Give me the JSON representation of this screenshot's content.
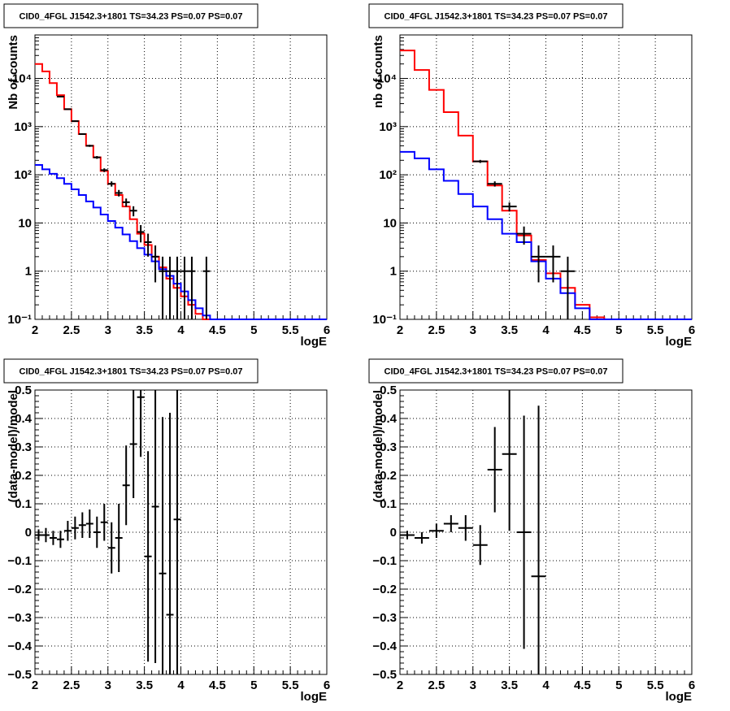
{
  "chart_data": [
    {
      "type": "histogram-log",
      "title": "CID0_4FGL J1542.3+1801 TS=34.23 PS=0.07 PS=0.07",
      "xlabel": "logE",
      "ylabel": "Nb of counts",
      "xlim": [
        2,
        6
      ],
      "ylim": [
        0.1,
        80000
      ],
      "log_y": true,
      "grid": true,
      "x_ticks": [
        "2",
        "2.5",
        "3",
        "3.5",
        "4",
        "4.5",
        "5",
        "5.5",
        "6"
      ],
      "x_tick_values": [
        2,
        2.5,
        3,
        3.5,
        4,
        4.5,
        5,
        5.5,
        6
      ],
      "y_ticks": [
        "10⁻¹",
        "1",
        "10",
        "10²",
        "10³",
        "10⁴"
      ],
      "y_tick_values": [
        0.1,
        1,
        10,
        100,
        1000,
        10000
      ],
      "bin_edges": [
        2.0,
        2.1,
        2.2,
        2.3,
        2.4,
        2.5,
        2.6,
        2.7,
        2.8,
        2.9,
        3.0,
        3.1,
        3.2,
        3.3,
        3.4,
        3.5,
        3.6,
        3.7,
        3.8,
        3.9,
        4.0,
        4.1,
        4.2,
        4.3,
        4.4,
        4.5,
        4.6,
        4.7,
        4.8,
        4.9,
        5.0,
        5.1,
        5.2,
        5.3,
        5.4,
        5.5,
        5.6,
        5.7,
        5.8,
        5.9,
        6.0
      ],
      "series": [
        {
          "name": "",
          "color": "#ff0000",
          "kind": "step",
          "values": [
            20000,
            14000,
            8000,
            4500,
            2300,
            1300,
            700,
            400,
            230,
            120,
            65,
            38,
            22,
            12,
            6,
            3.5,
            2,
            1.2,
            0.7,
            0.45,
            0.3,
            0.2,
            0.13,
            0.1,
            0.1,
            0.1,
            0.1,
            0.1,
            0.1,
            0.1,
            0.1,
            0.1,
            0.1,
            0.1,
            0.1,
            0.1,
            0.1,
            0.1,
            0.1,
            0.1
          ]
        },
        {
          "name": "",
          "color": "#0000ff",
          "kind": "step",
          "values": [
            160,
            130,
            105,
            85,
            65,
            50,
            38,
            28,
            21,
            15,
            11,
            8,
            5.8,
            4.2,
            3,
            2.2,
            1.6,
            1.1,
            0.8,
            0.55,
            0.38,
            0.25,
            0.17,
            0.12,
            0.1,
            0.1,
            0.1,
            0.1,
            0.1,
            0.1,
            0.1,
            0.1,
            0.1,
            0.1,
            0.1,
            0.1,
            0.1,
            0.1,
            0.1,
            0.1
          ]
        },
        {
          "name": "",
          "color": "#000000",
          "kind": "points",
          "x": [
            2.35,
            2.45,
            2.55,
            2.65,
            2.75,
            2.85,
            2.95,
            3.05,
            3.15,
            3.25,
            3.35,
            3.45,
            3.55,
            3.65,
            3.75,
            3.85,
            3.95,
            4.05,
            4.15,
            4.35
          ],
          "y": [
            4200,
            2300,
            1300,
            700,
            400,
            230,
            125,
            65,
            42,
            27,
            18,
            6.5,
            4,
            2,
            1,
            1,
            1,
            1,
            1,
            1
          ]
        }
      ]
    },
    {
      "type": "histogram-log",
      "title": "CID0_4FGL J1542.3+1801 TS=34.23 PS=0.07 PS=0.07",
      "xlabel": "logE",
      "ylabel": "nb of counts",
      "xlim": [
        2,
        6
      ],
      "ylim": [
        0.1,
        80000
      ],
      "log_y": true,
      "grid": true,
      "x_ticks": [
        "2",
        "2.5",
        "3",
        "3.5",
        "4",
        "4.5",
        "5",
        "5.5",
        "6"
      ],
      "x_tick_values": [
        2,
        2.5,
        3,
        3.5,
        4,
        4.5,
        5,
        5.5,
        6
      ],
      "y_ticks": [
        "10⁻¹",
        "1",
        "10",
        "10²",
        "10³",
        "10⁴"
      ],
      "y_tick_values": [
        0.1,
        1,
        10,
        100,
        1000,
        10000
      ],
      "bin_edges": [
        2.0,
        2.2,
        2.4,
        2.6,
        2.8,
        3.0,
        3.2,
        3.4,
        3.6,
        3.8,
        4.0,
        4.2,
        4.4,
        4.6,
        4.8,
        5.0,
        5.2,
        5.4,
        5.6,
        5.8,
        6.0
      ],
      "series": [
        {
          "name": "",
          "color": "#ff0000",
          "kind": "step",
          "values": [
            38000,
            15000,
            5800,
            2000,
            650,
            190,
            60,
            18,
            5.5,
            1.7,
            0.9,
            0.45,
            0.2,
            0.11,
            0.1,
            0.1,
            0.1,
            0.1,
            0.1,
            0.1
          ]
        },
        {
          "name": "",
          "color": "#0000ff",
          "kind": "step",
          "values": [
            300,
            220,
            130,
            75,
            40,
            22,
            12,
            6,
            4,
            1.6,
            0.7,
            0.35,
            0.17,
            0.1,
            0.1,
            0.1,
            0.1,
            0.1,
            0.1,
            0.1
          ]
        },
        {
          "name": "",
          "color": "#000000",
          "kind": "points",
          "x": [
            3.1,
            3.3,
            3.5,
            3.7,
            3.9,
            4.1,
            4.3
          ],
          "y": [
            190,
            65,
            22,
            6,
            2,
            2,
            1
          ]
        }
      ]
    },
    {
      "type": "residuals",
      "title": "CID0_4FGL J1542.3+1801 TS=34.23 PS=0.07 PS=0.07",
      "xlabel": "logE",
      "ylabel": "(data-model)/model",
      "xlim": [
        2,
        6
      ],
      "ylim": [
        -0.5,
        0.5
      ],
      "grid": true,
      "x_ticks": [
        "2",
        "2.5",
        "3",
        "3.5",
        "4",
        "4.5",
        "5",
        "5.5",
        "6"
      ],
      "x_tick_values": [
        2,
        2.5,
        3,
        3.5,
        4,
        4.5,
        5,
        5.5,
        6
      ],
      "y_ticks": [
        "−0.5",
        "−0.4",
        "−0.3",
        "−0.2",
        "−0.1",
        "0",
        "0.1",
        "0.2",
        "0.3",
        "0.4",
        "0.5"
      ],
      "y_tick_values": [
        -0.5,
        -0.4,
        -0.3,
        -0.2,
        -0.1,
        0,
        0.1,
        0.2,
        0.3,
        0.4,
        0.5
      ],
      "bin_width": 0.1,
      "points": [
        {
          "x": 2.05,
          "y": -0.01,
          "err": 0.02
        },
        {
          "x": 2.15,
          "y": -0.01,
          "err": 0.025
        },
        {
          "x": 2.25,
          "y": -0.02,
          "err": 0.025
        },
        {
          "x": 2.35,
          "y": -0.025,
          "err": 0.03
        },
        {
          "x": 2.45,
          "y": 0.005,
          "err": 0.035
        },
        {
          "x": 2.55,
          "y": 0.015,
          "err": 0.04
        },
        {
          "x": 2.65,
          "y": 0.025,
          "err": 0.045
        },
        {
          "x": 2.75,
          "y": 0.03,
          "err": 0.05
        },
        {
          "x": 2.85,
          "y": 0.0,
          "err": 0.055
        },
        {
          "x": 2.95,
          "y": 0.035,
          "err": 0.065
        },
        {
          "x": 3.05,
          "y": -0.055,
          "err": 0.09
        },
        {
          "x": 3.15,
          "y": -0.02,
          "err": 0.12
        },
        {
          "x": 3.25,
          "y": 0.165,
          "err": 0.14
        },
        {
          "x": 3.35,
          "y": 0.31,
          "err": 0.19
        },
        {
          "x": 3.45,
          "y": 0.475,
          "err": 0.21
        },
        {
          "x": 3.55,
          "y": -0.085,
          "err": 0.37
        },
        {
          "x": 3.65,
          "y": 0.09,
          "err": 0.55
        },
        {
          "x": 3.75,
          "y": -0.145,
          "err": 0.55
        },
        {
          "x": 3.85,
          "y": -0.29,
          "err": 0.71
        },
        {
          "x": 3.95,
          "y": 0.045,
          "err": 1.0
        }
      ]
    },
    {
      "type": "residuals",
      "title": "CID0_4FGL J1542.3+1801 TS=34.23 PS=0.07 PS=0.07",
      "xlabel": "logE",
      "ylabel": "(data-model)/model",
      "xlim": [
        2,
        6
      ],
      "ylim": [
        -0.5,
        0.5
      ],
      "grid": true,
      "x_ticks": [
        "2",
        "2.5",
        "3",
        "3.5",
        "4",
        "4.5",
        "5",
        "5.5",
        "6"
      ],
      "x_tick_values": [
        2,
        2.5,
        3,
        3.5,
        4,
        4.5,
        5,
        5.5,
        6
      ],
      "y_ticks": [
        "−0.5",
        "−0.4",
        "−0.3",
        "−0.2",
        "−0.1",
        "0",
        "0.1",
        "0.2",
        "0.3",
        "0.4",
        "0.5"
      ],
      "y_tick_values": [
        -0.5,
        -0.4,
        -0.3,
        -0.2,
        -0.1,
        0,
        0.1,
        0.2,
        0.3,
        0.4,
        0.5
      ],
      "bin_width": 0.2,
      "points": [
        {
          "x": 2.1,
          "y": -0.01,
          "err": 0.015
        },
        {
          "x": 2.3,
          "y": -0.02,
          "err": 0.02
        },
        {
          "x": 2.5,
          "y": 0.005,
          "err": 0.025
        },
        {
          "x": 2.7,
          "y": 0.03,
          "err": 0.03
        },
        {
          "x": 2.9,
          "y": 0.015,
          "err": 0.045
        },
        {
          "x": 3.1,
          "y": -0.045,
          "err": 0.07
        },
        {
          "x": 3.3,
          "y": 0.22,
          "err": 0.15
        },
        {
          "x": 3.5,
          "y": 0.275,
          "err": 0.27
        },
        {
          "x": 3.7,
          "y": 0.0,
          "err": 0.41
        },
        {
          "x": 3.9,
          "y": -0.155,
          "err": 0.6
        }
      ]
    }
  ]
}
